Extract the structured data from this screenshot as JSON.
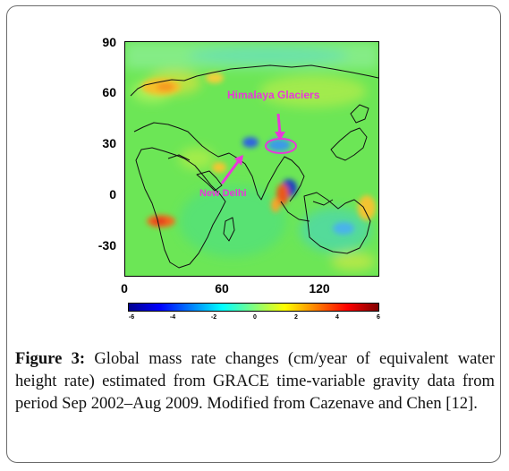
{
  "figure": {
    "y_ticks": [
      "90",
      "60",
      "30",
      "0",
      "-30"
    ],
    "x_ticks": [
      "0",
      "60",
      "120"
    ],
    "annotations": {
      "himalaya": "Himalaya Glaciers",
      "delhi": "New Delhi"
    },
    "annotation_color": "#e838d8",
    "colorbar": {
      "ticks": [
        "-6",
        "-4",
        "-2",
        "0",
        "2",
        "4",
        "6"
      ],
      "range": [
        -6,
        6
      ],
      "colormap": "jet"
    }
  },
  "caption": {
    "label": "Figure 3:",
    "text": " Global mass rate changes (cm/year of equivalent water height rate) estimated from GRACE time-variable gravity data from period Sep 2002–Aug 2009. Modified from Cazenave and Chen [12]."
  }
}
